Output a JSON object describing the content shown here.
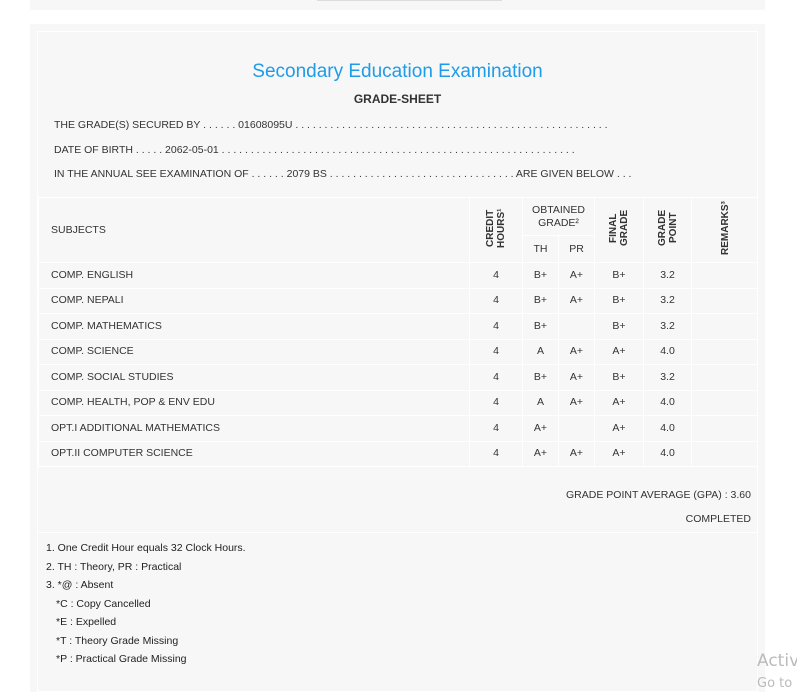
{
  "title": "Secondary Education Examination",
  "subtitle": "GRADE-SHEET",
  "info": {
    "line1": "THE GRADE(S) SECURED BY . . . . . . 01608095U . . . . . . . . . . . . . . . . . . . . . . . . . . . . . . . . . . . . . . . . . . . . . . . . . . . . . .",
    "line2": "DATE OF BIRTH . . . . . 2062-05-01 . . . . . . . . . . . . . . . . . . . . . . . . . . . . . . . . . . . . . . . . . . . . . . . . . . . . . . . . . . . . .",
    "line3": "IN THE ANNUAL SEE EXAMINATION OF . . . . . . 2079 BS . . . . . . . . . . . . . . . . . . . . . . . . . . . . . . . . ARE GIVEN BELOW . . ."
  },
  "table": {
    "headers": {
      "subjects": "SUBJECTS",
      "credit": "CREDIT HOURS¹",
      "obtained": "OBTAINED GRADE²",
      "th": "TH",
      "pr": "PR",
      "final": "FINAL GRADE",
      "point": "GRADE POINT",
      "remarks": "REMARKS³"
    },
    "rows": [
      {
        "subject": "COMP. ENGLISH",
        "credit": "4",
        "th": "B+",
        "pr": "A+",
        "final": "B+",
        "point": "3.2",
        "remarks": ""
      },
      {
        "subject": "COMP. NEPALI",
        "credit": "4",
        "th": "B+",
        "pr": "A+",
        "final": "B+",
        "point": "3.2",
        "remarks": ""
      },
      {
        "subject": "COMP. MATHEMATICS",
        "credit": "4",
        "th": "B+",
        "pr": "",
        "final": "B+",
        "point": "3.2",
        "remarks": ""
      },
      {
        "subject": "COMP. SCIENCE",
        "credit": "4",
        "th": "A",
        "pr": "A+",
        "final": "A+",
        "point": "4.0",
        "remarks": ""
      },
      {
        "subject": "COMP. SOCIAL STUDIES",
        "credit": "4",
        "th": "B+",
        "pr": "A+",
        "final": "B+",
        "point": "3.2",
        "remarks": ""
      },
      {
        "subject": "COMP. HEALTH, POP & ENV EDU",
        "credit": "4",
        "th": "A",
        "pr": "A+",
        "final": "A+",
        "point": "4.0",
        "remarks": ""
      },
      {
        "subject": "OPT.I ADDITIONAL MATHEMATICS",
        "credit": "4",
        "th": "A+",
        "pr": "",
        "final": "A+",
        "point": "4.0",
        "remarks": ""
      },
      {
        "subject": "OPT.II COMPUTER SCIENCE",
        "credit": "4",
        "th": "A+",
        "pr": "A+",
        "final": "A+",
        "point": "4.0",
        "remarks": ""
      }
    ]
  },
  "gpa": "GRADE POINT AVERAGE (GPA) : 3.60",
  "status": "COMPLETED",
  "footnotes": [
    "1. One Credit Hour equals 32 Clock Hours.",
    "2. TH : Theory, PR : Practical",
    "3. *@ : Absent",
    "*C : Copy Cancelled",
    "*E : Expelled",
    "*T : Theory Grade Missing",
    "*P : Practical Grade Missing"
  ],
  "watermark": {
    "line1": "Activ",
    "line2": "Go to"
  },
  "colors": {
    "title": "#1e9be9",
    "panel": "#f7f7f7"
  }
}
